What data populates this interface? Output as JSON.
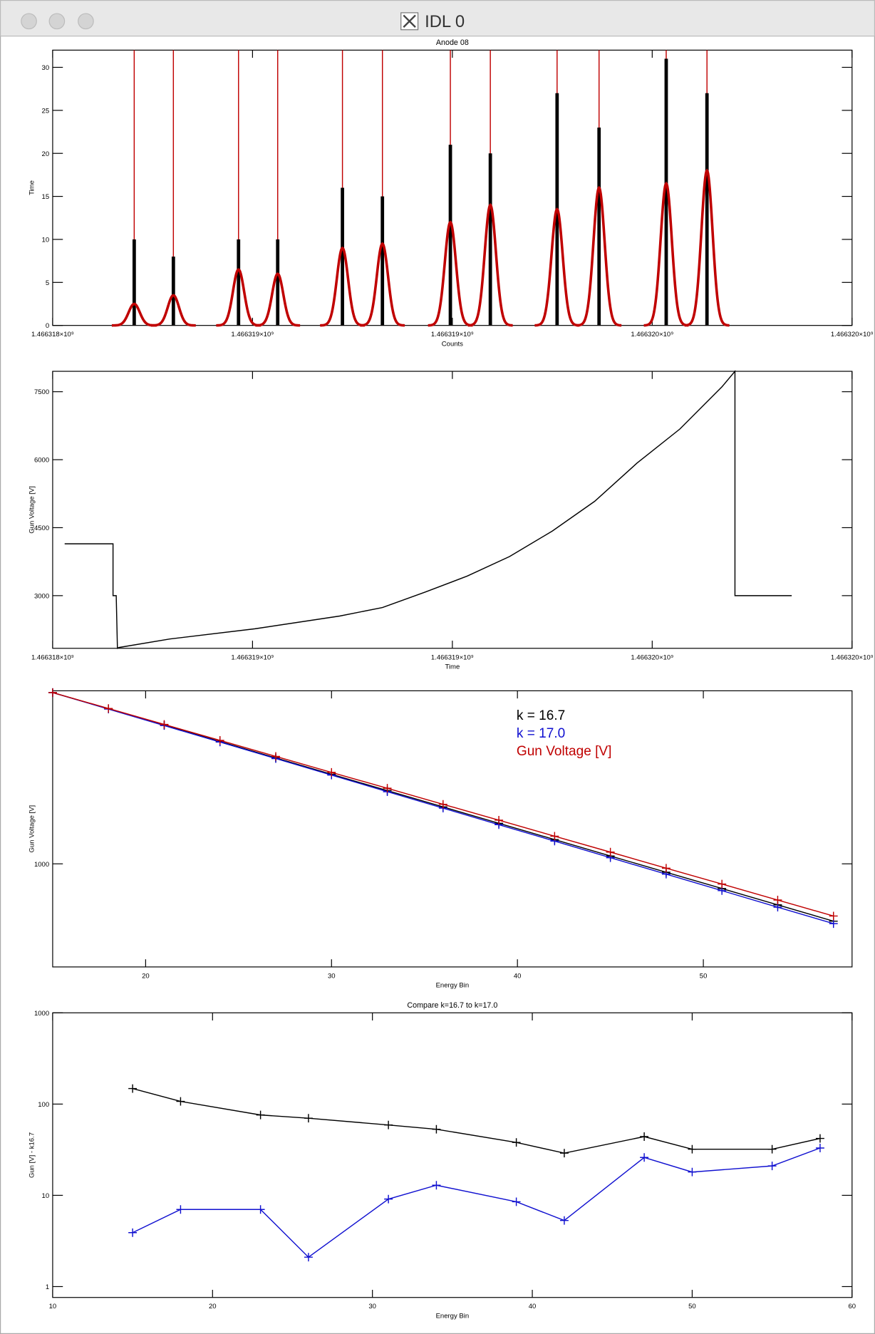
{
  "window": {
    "title": "IDL 0"
  },
  "chart_data": [
    {
      "type": "peaks",
      "title": "Anode 08",
      "xlabel": "Counts",
      "ylabel": "Time",
      "xlim": [
        1466318000,
        1466320000
      ],
      "ylim": [
        0,
        32
      ],
      "xticks": [
        {
          "value": 1466318000,
          "label": "1.466318×10⁹"
        },
        {
          "value": 1466318500,
          "label": "1.466319×10⁹"
        },
        {
          "value": 1466319000,
          "label": "1.466319×10⁹"
        },
        {
          "value": 1466319500,
          "label": "1.466320×10⁹"
        },
        {
          "value": 1466320000,
          "label": "1.466320×10⁹"
        }
      ],
      "yticks": [
        0,
        5,
        10,
        15,
        20,
        25,
        30
      ],
      "x": [
        1466318204,
        1466318302,
        1466318465,
        1466318563,
        1466318725,
        1466318825,
        1466318995,
        1466319095,
        1466319262,
        1466319367,
        1466319535,
        1466319637
      ],
      "fit_sigma": 14,
      "series": [
        {
          "color": "#000000",
          "values": [
            10,
            8,
            10,
            10,
            16,
            15,
            21,
            20,
            27,
            23,
            31,
            27
          ]
        },
        {
          "color": "#c00000",
          "values": [
            2.5,
            3.5,
            6.5,
            6,
            9,
            9.5,
            12,
            14,
            13.5,
            16,
            16.5,
            18
          ]
        }
      ]
    },
    {
      "type": "line",
      "xlabel": "Time",
      "ylabel": "Gun Voltage [V]",
      "xlim": [
        1466318000,
        1466320000
      ],
      "ylim": [
        1838,
        7950
      ],
      "xticks": [
        {
          "value": 1466318000,
          "label": "1.466318×10⁹"
        },
        {
          "value": 1466318500,
          "label": "1.466319×10⁹"
        },
        {
          "value": 1466319000,
          "label": "1.466319×10⁹"
        },
        {
          "value": 1466319500,
          "label": "1.466320×10⁹"
        },
        {
          "value": 1466320000,
          "label": "1.466320×10⁹"
        }
      ],
      "yticks": [
        3000,
        4500,
        6000,
        7500
      ],
      "x": [
        1466318030,
        1466318151,
        1466318151,
        1466318159,
        1466318162,
        1466318166,
        1466318293,
        1466318506,
        1466318718,
        1466318825,
        1466318931,
        1466319037,
        1466319143,
        1466319250,
        1466319356,
        1466319462,
        1466319569,
        1466319675,
        1466319707,
        1466319707,
        1466319849
      ],
      "series": [
        {
          "color": "#000000",
          "values": [
            4144,
            4144,
            3000,
            3000,
            1838,
            1856,
            2044,
            2269,
            2550,
            2738,
            3075,
            3431,
            3863,
            4425,
            5081,
            5925,
            6675,
            7613,
            7950,
            3000,
            3000
          ]
        }
      ]
    },
    {
      "type": "line",
      "xlabel": "Energy Bin",
      "ylabel": "Gun Voltage [V]",
      "ylog": true,
      "legend": "top-right",
      "xlim": [
        15,
        58
      ],
      "ylim": [
        500,
        3200
      ],
      "xticks": [
        20,
        30,
        40,
        50
      ],
      "yticks": [
        1000
      ],
      "x": [
        15,
        18,
        21,
        24,
        27,
        30,
        33,
        36,
        39,
        42,
        45,
        48,
        51,
        54,
        57
      ],
      "series": [
        {
          "name": "k = 16.7",
          "color": "#000000",
          "marker": "+",
          "values": [
            3162,
            2834,
            2539,
            2275,
            2038,
            1826,
            1636,
            1466,
            1313,
            1177,
            1054,
            945,
            847,
            759,
            680
          ]
        },
        {
          "name": "k = 17.0",
          "color": "#1010d0",
          "marker": "+",
          "values": [
            3162,
            2830,
            2533,
            2267,
            2029,
            1816,
            1624,
            1454,
            1301,
            1165,
            1042,
            933,
            835,
            747,
            669
          ]
        },
        {
          "name": "Gun Voltage [V]",
          "color": "#c00000",
          "marker": "+",
          "values": [
            3162,
            2841,
            2552,
            2293,
            2059,
            1849,
            1662,
            1492,
            1341,
            1204,
            1082,
            971,
            873,
            784,
            704
          ]
        }
      ]
    },
    {
      "type": "line",
      "title": "Compare k=16.7 to k=17.0",
      "xlabel": "Energy Bin",
      "ylabel": "Gun [V] - k16.7",
      "ylog": true,
      "xlim": [
        10,
        60
      ],
      "ylim": [
        0.76,
        1000
      ],
      "xticks": [
        10,
        20,
        30,
        40,
        50,
        60
      ],
      "yticks": [
        1,
        10,
        100,
        1000
      ],
      "x": [
        15,
        18,
        23,
        26,
        31,
        34,
        39,
        42,
        47,
        50,
        55,
        58
      ],
      "series": [
        {
          "color": "#000000",
          "marker": "+",
          "values": [
            148,
            107,
            76,
            70,
            59,
            53,
            38,
            29,
            44,
            32,
            32,
            42
          ]
        },
        {
          "color": "#1010d0",
          "marker": "+",
          "values": [
            3.9,
            7,
            7,
            2.1,
            9.1,
            12.9,
            8.5,
            5.3,
            26,
            18,
            21,
            33
          ]
        }
      ]
    }
  ]
}
